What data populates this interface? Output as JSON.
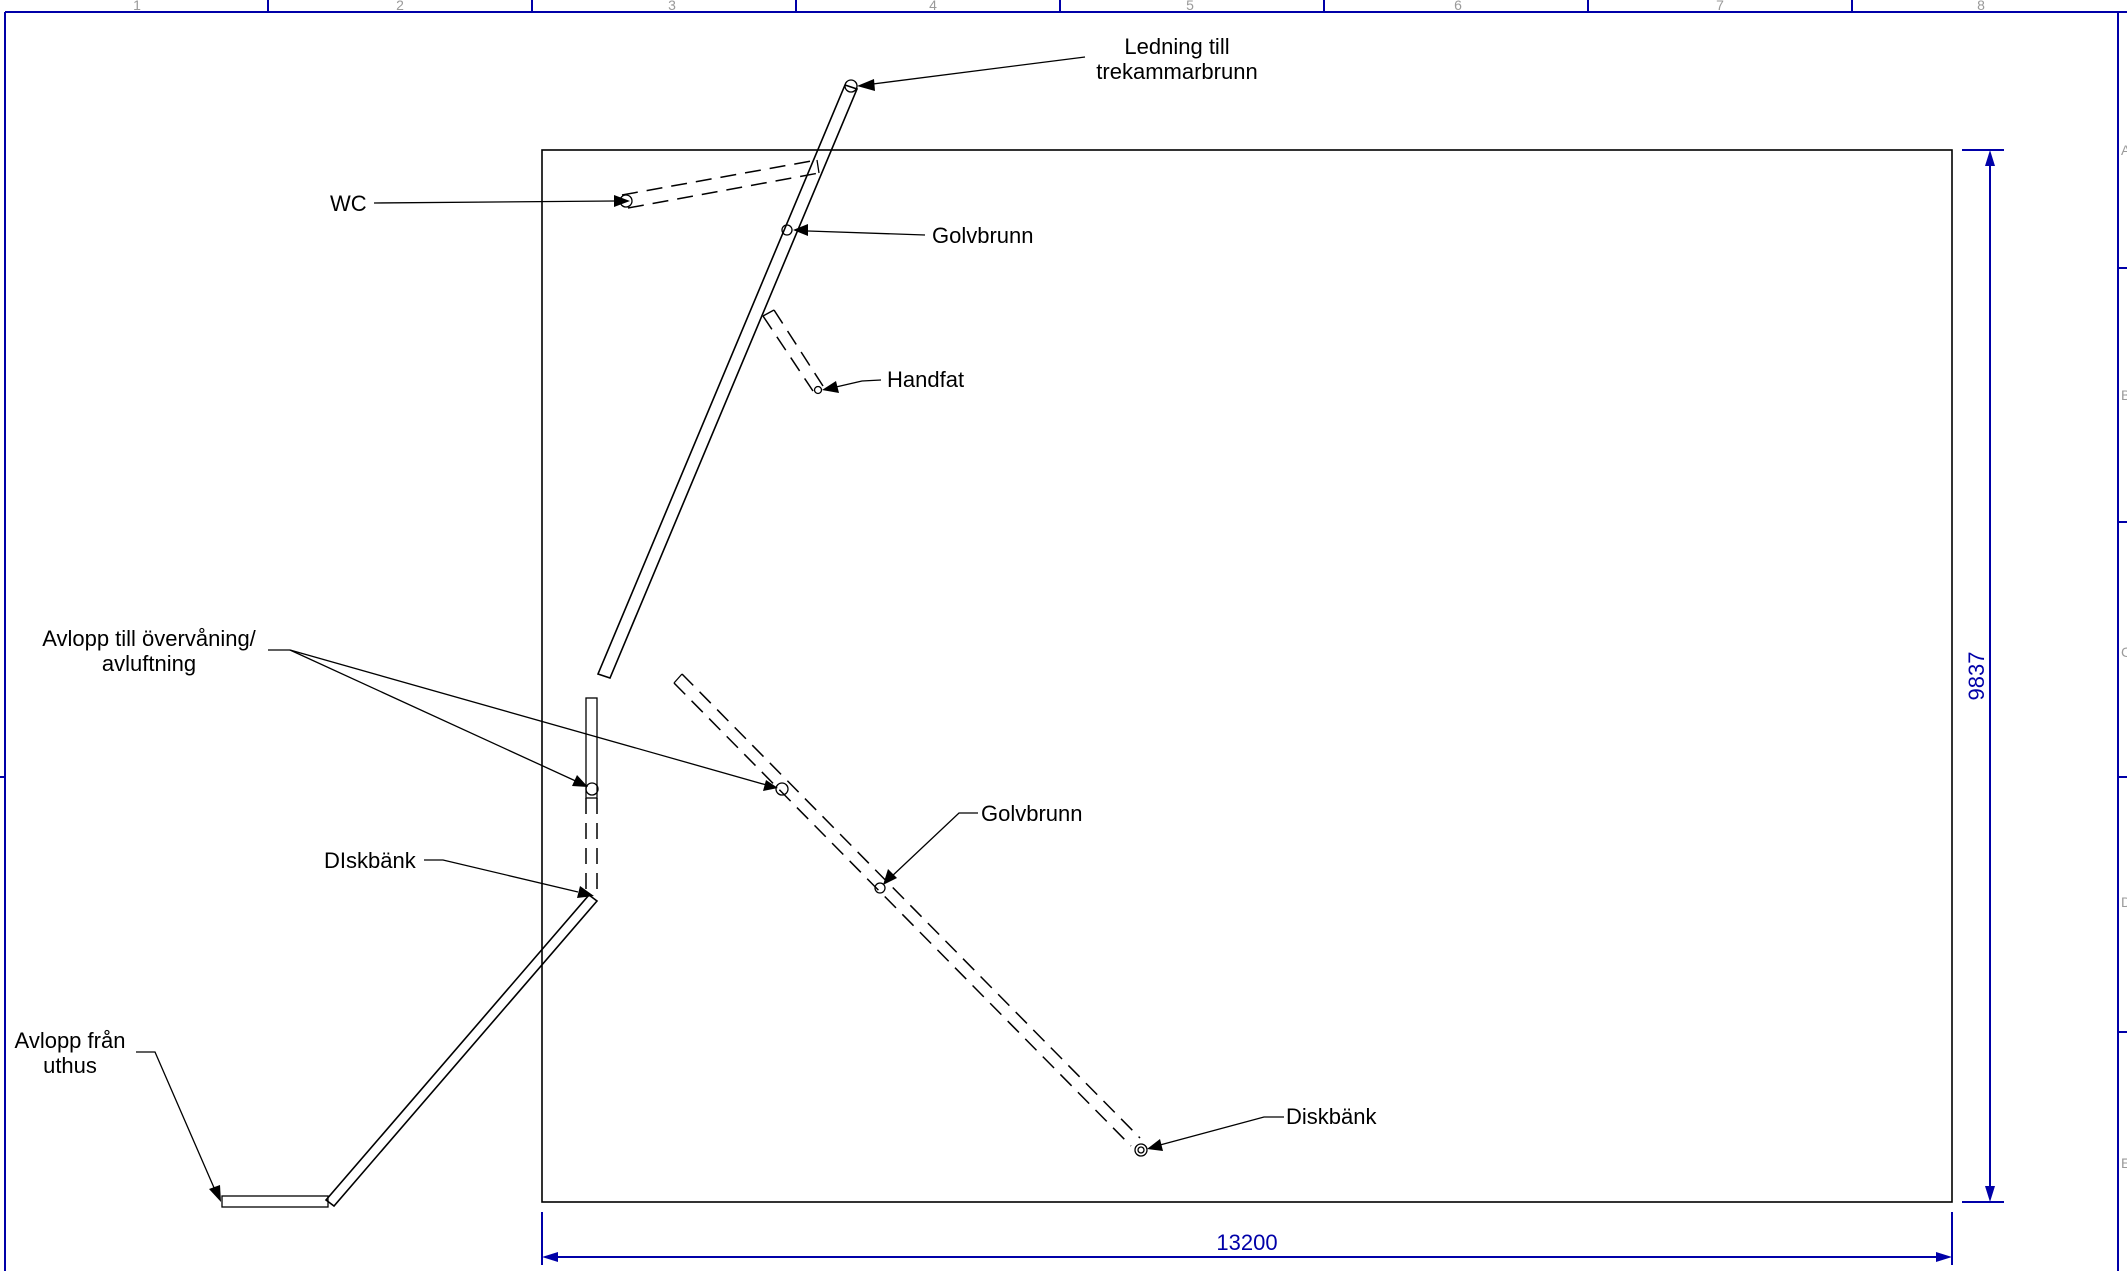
{
  "sheet": {
    "zone_numbers": [
      "1",
      "2",
      "3",
      "4",
      "5",
      "6",
      "7",
      "8"
    ],
    "zone_letters": [
      "A",
      "B",
      "C",
      "D",
      "E"
    ],
    "frame_color": "#0000a8"
  },
  "labels": {
    "ledning_line1": "Ledning till",
    "ledning_line2": "trekammarbrunn",
    "wc": "WC",
    "golvbrunn_upper": "Golvbrunn",
    "handfat": "Handfat",
    "avlopp_ov_line1": "Avlopp till övervåning/",
    "avlopp_ov_line2": "avluftning",
    "golvbrunn_lower": "Golvbrunn",
    "diskbank_left": "DIskbänk",
    "diskbank_right": "Diskbänk",
    "avlopp_uthus_line1": "Avlopp från",
    "avlopp_uthus_line2": "uthus"
  },
  "dimensions": {
    "width": "13200",
    "height": "9837"
  }
}
